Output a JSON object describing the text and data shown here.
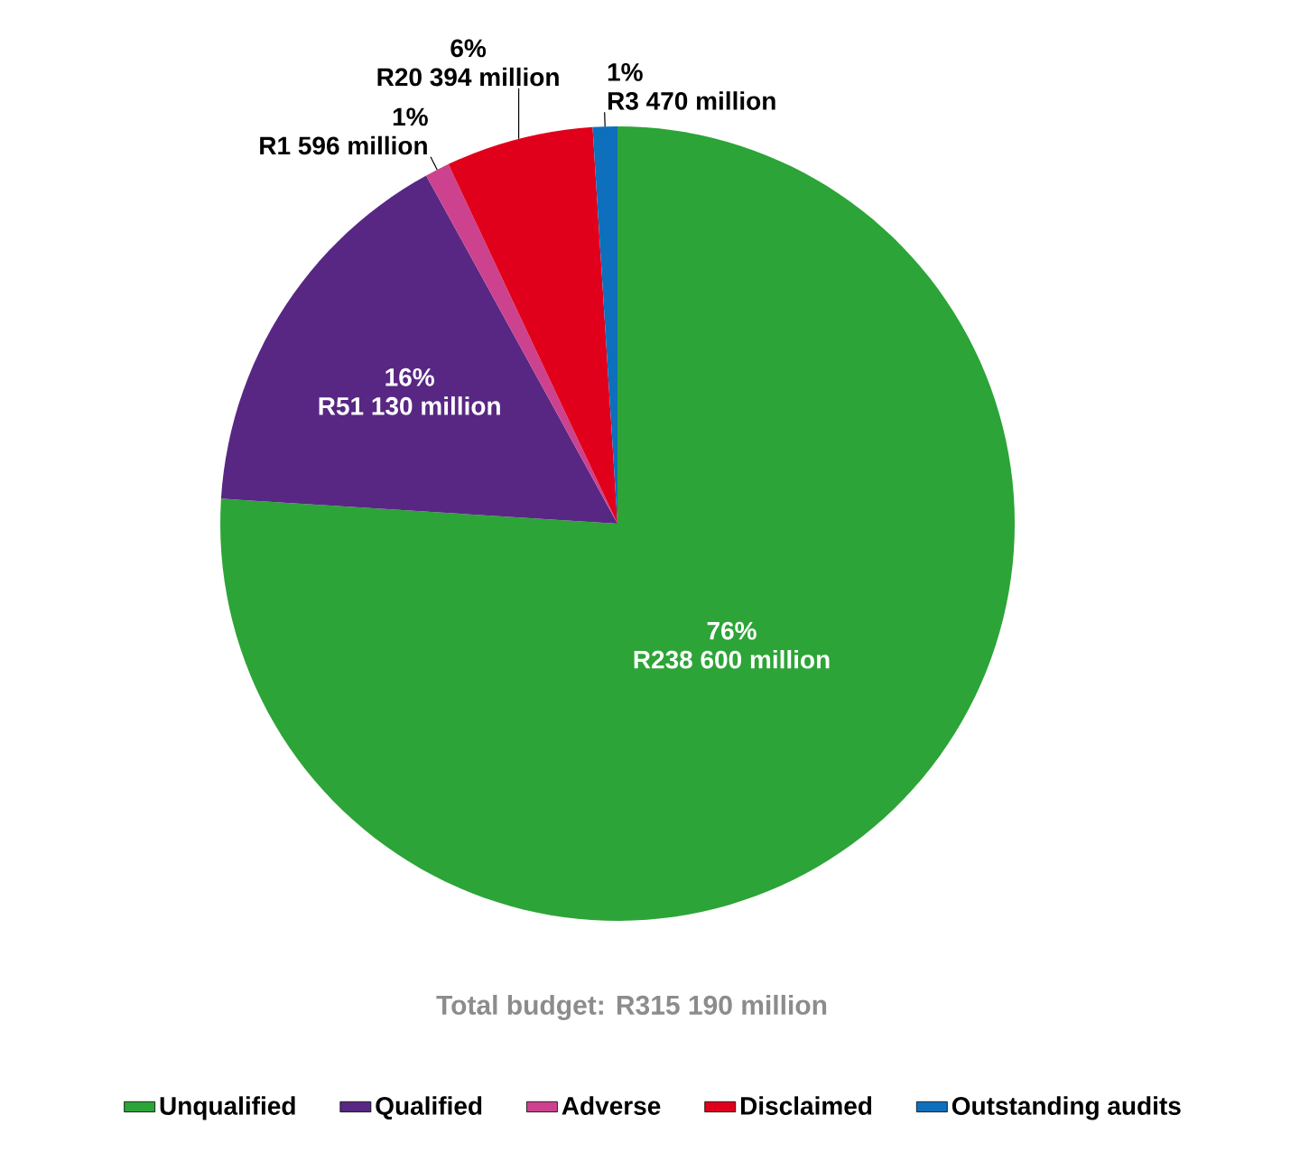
{
  "chart_data": {
    "type": "pie",
    "categories": [
      "Unqualified",
      "Qualified",
      "Adverse",
      "Disclaimed",
      "Outstanding audits"
    ],
    "values": [
      76,
      16,
      1,
      6,
      1
    ],
    "value_labels": [
      "76%",
      "16%",
      "1%",
      "6%",
      "1%"
    ],
    "colors": [
      "#2ca437",
      "#582783",
      "#cc428e",
      "#e0001b",
      "#0e6fbd"
    ],
    "annotations": [
      {
        "text": "R238 600 million",
        "x": "Unqualified"
      },
      {
        "text": "R51 130 million",
        "x": "Qualified"
      },
      {
        "text": "R1 596 million",
        "x": "Adverse"
      },
      {
        "text": "R20 394 million",
        "x": "Disclaimed"
      },
      {
        "text": "R3 470 million",
        "x": "Outstanding audits"
      },
      "Total budget: R315 190 million"
    ],
    "legend": "bottom"
  }
}
